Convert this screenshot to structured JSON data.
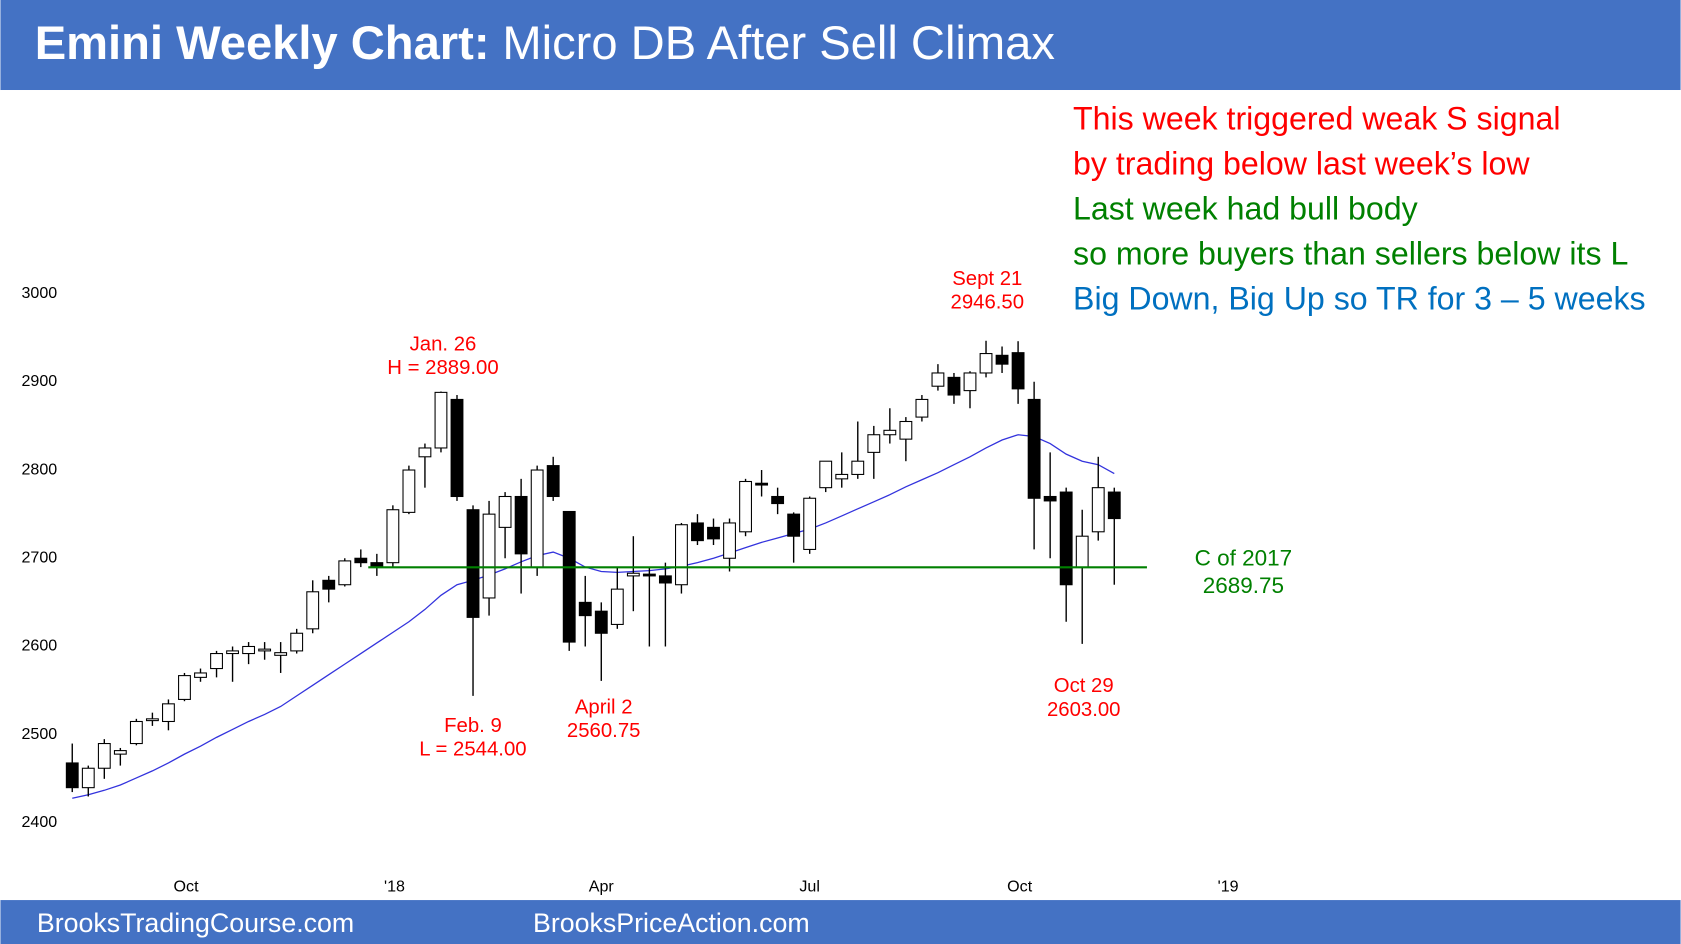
{
  "chart_data": {
    "type": "candlestick",
    "title": [
      "Emini Weekly Chart:",
      "Micro DB After Sell Climax"
    ],
    "footer": [
      "BrooksTradingCourse.com",
      "BrooksPriceAction.com"
    ],
    "header_color": "#4472c4",
    "x": [
      0,
      1,
      2,
      3,
      4,
      5,
      6,
      7,
      8,
      9,
      10,
      11,
      12,
      13,
      14,
      15,
      16,
      17,
      18,
      19,
      20,
      21,
      22,
      23,
      24,
      25,
      26,
      27,
      28,
      29,
      30,
      31,
      32,
      33,
      34,
      35,
      36,
      37,
      38,
      39,
      40,
      41,
      42,
      43,
      44,
      45,
      46,
      47,
      48,
      49,
      50,
      51,
      52,
      53,
      54,
      55,
      56,
      57,
      58,
      59,
      60,
      61,
      62,
      63,
      64,
      65
    ],
    "open": [
      2468,
      2440,
      2462,
      2478,
      2490,
      2516,
      2515,
      2540,
      2565,
      2575,
      2592,
      2592,
      2595,
      2590,
      2595,
      2620,
      2675,
      2670,
      2700,
      2695,
      2695,
      2752,
      2815,
      2825,
      2880,
      2755,
      2655,
      2735,
      2770,
      2690,
      2805,
      2753,
      2650,
      2640,
      2625,
      2680,
      2682,
      2680,
      2670,
      2740,
      2735,
      2700,
      2730,
      2785,
      2770,
      2750,
      2710,
      2780,
      2790,
      2795,
      2820,
      2840,
      2835,
      2860,
      2895,
      2905,
      2890,
      2910,
      2930,
      2933,
      2880,
      2770,
      2775,
      2690,
      2730,
      2775
    ],
    "high": [
      2490,
      2465,
      2495,
      2485,
      2518,
      2525,
      2540,
      2570,
      2575,
      2595,
      2600,
      2605,
      2605,
      2605,
      2620,
      2675,
      2680,
      2700,
      2710,
      2705,
      2760,
      2805,
      2830,
      2889,
      2885,
      2760,
      2765,
      2775,
      2790,
      2805,
      2815,
      2753,
      2680,
      2650,
      2690,
      2725,
      2690,
      2695,
      2740,
      2750,
      2745,
      2745,
      2790,
      2800,
      2780,
      2752,
      2770,
      2810,
      2820,
      2855,
      2850,
      2870,
      2860,
      2885,
      2920,
      2910,
      2912,
      2946.5,
      2940,
      2946,
      2900,
      2820,
      2780,
      2755,
      2815,
      2780
    ],
    "low": [
      2435,
      2430,
      2450,
      2465,
      2488,
      2510,
      2505,
      2538,
      2560,
      2565,
      2560,
      2580,
      2585,
      2570,
      2592,
      2615,
      2650,
      2668,
      2690,
      2680,
      2690,
      2750,
      2780,
      2820,
      2765,
      2544,
      2635,
      2700,
      2660,
      2680,
      2765,
      2595,
      2600,
      2561,
      2620,
      2640,
      2600,
      2600,
      2660,
      2715,
      2715,
      2685,
      2725,
      2770,
      2750,
      2695,
      2705,
      2775,
      2780,
      2790,
      2790,
      2830,
      2810,
      2855,
      2890,
      2875,
      2870,
      2905,
      2910,
      2875,
      2710,
      2700,
      2628,
      2603,
      2720,
      2670
    ],
    "close": [
      2440,
      2462,
      2490,
      2482,
      2515,
      2518,
      2535,
      2567,
      2570,
      2592,
      2595,
      2600,
      2597,
      2593,
      2615,
      2662,
      2665,
      2697,
      2695,
      2690,
      2755,
      2800,
      2825,
      2888,
      2770,
      2633,
      2750,
      2770,
      2705,
      2800,
      2770,
      2605,
      2635,
      2615,
      2665,
      2683,
      2680,
      2672,
      2738,
      2720,
      2722,
      2740,
      2787,
      2783,
      2762,
      2725,
      2768,
      2810,
      2795,
      2810,
      2840,
      2845,
      2855,
      2880,
      2910,
      2885,
      2910,
      2932,
      2920,
      2892,
      2768,
      2765,
      2670,
      2725,
      2780,
      2745
    ],
    "up_color": "#ffffff",
    "down_color": "#000000",
    "ma": {
      "color": "#3333dd",
      "values": [
        2428,
        2432,
        2437,
        2443,
        2451,
        2459,
        2468,
        2478,
        2487,
        2497,
        2506,
        2515,
        2523,
        2532,
        2544,
        2556,
        2568,
        2580,
        2592,
        2604,
        2616,
        2628,
        2642,
        2658,
        2670,
        2675,
        2681,
        2688,
        2696,
        2703,
        2707,
        2700,
        2690,
        2685,
        2684,
        2685,
        2686,
        2688,
        2691,
        2695,
        2700,
        2706,
        2712,
        2718,
        2723,
        2728,
        2733,
        2740,
        2748,
        2756,
        2764,
        2772,
        2781,
        2789,
        2797,
        2806,
        2815,
        2825,
        2834,
        2840,
        2838,
        2830,
        2818,
        2810,
        2806,
        2796
      ]
    },
    "hline": {
      "value": 2689.75,
      "color": "#008000",
      "label": [
        "C of 2017",
        "2689.75"
      ]
    },
    "annotations": [
      {
        "lines": [
          "Jan. 26",
          "H = 2889.00"
        ],
        "color": "#ff0000"
      },
      {
        "lines": [
          "Feb. 9",
          "L = 2544.00"
        ],
        "color": "#ff0000"
      },
      {
        "lines": [
          "April 2",
          "2560.75"
        ],
        "color": "#ff0000"
      },
      {
        "lines": [
          "Sept 21",
          "2946.50"
        ],
        "color": "#ff0000"
      },
      {
        "lines": [
          "Oct 29",
          "2603.00"
        ],
        "color": "#ff0000"
      }
    ],
    "notes": [
      {
        "text": "This week triggered weak S signal",
        "color": "#ff0000"
      },
      {
        "text": "by trading below last week’s low",
        "color": "#ff0000"
      },
      {
        "text": "Last week had bull body",
        "color": "#008000"
      },
      {
        "text": "so more buyers than sellers below its L",
        "color": "#008000"
      },
      {
        "text": "Big Down, Big Up so TR for 3 – 5 weeks",
        "color": "#0070c0"
      }
    ],
    "xlim": [
      -2,
      78
    ],
    "ylim": [
      2380,
      3020
    ],
    "xticks": [
      {
        "value": 7.1,
        "label": "Oct"
      },
      {
        "value": 20.1,
        "label": "'18"
      },
      {
        "value": 33.0,
        "label": "Apr"
      },
      {
        "value": 46.0,
        "label": "Jul"
      },
      {
        "value": 59.1,
        "label": "Oct"
      },
      {
        "value": 72.1,
        "label": "'19"
      }
    ],
    "yticks": [
      2400,
      2500,
      2600,
      2700,
      2800,
      2900,
      3000
    ]
  }
}
